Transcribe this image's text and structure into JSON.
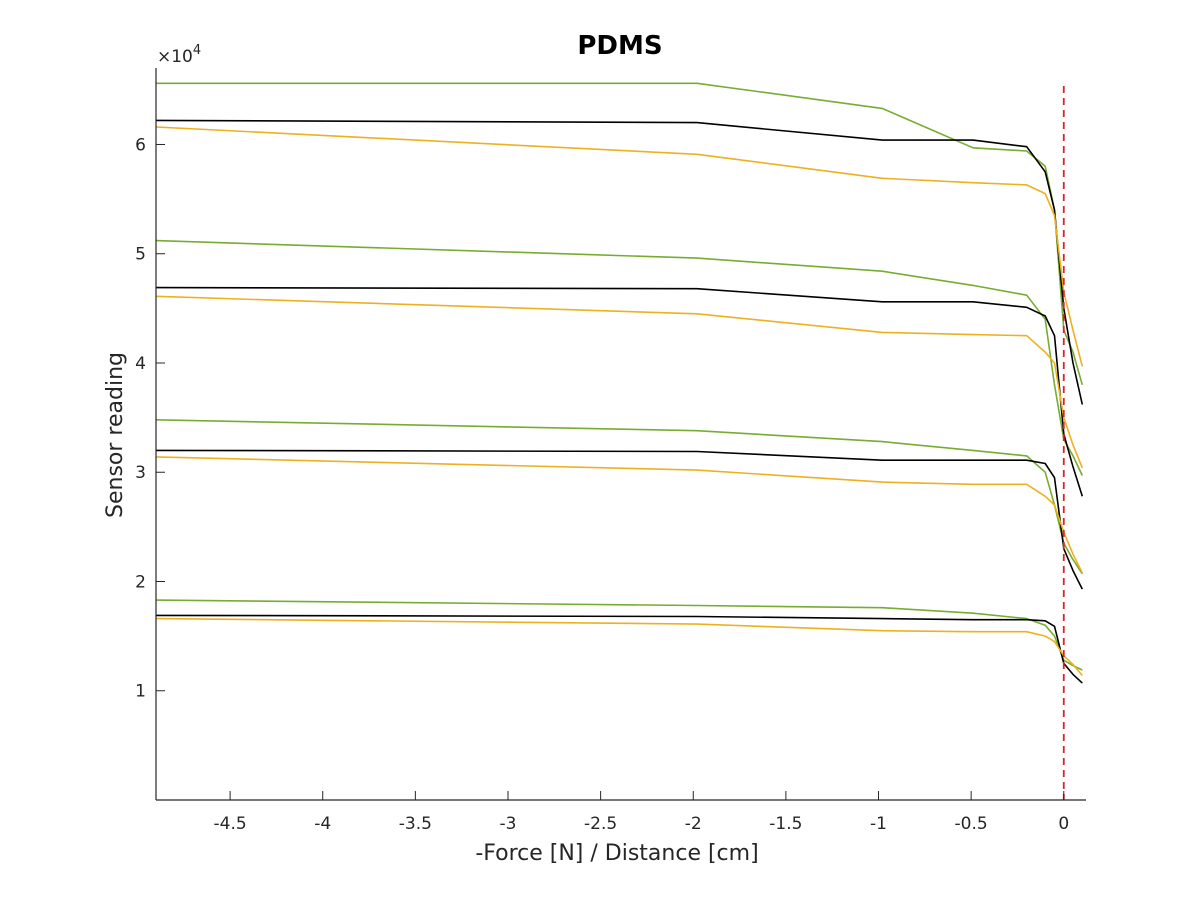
{
  "chart_data": {
    "type": "line",
    "title": "PDMS",
    "xlabel": "-Force [N] / Distance [cm]",
    "ylabel": "Sensor reading",
    "y_exponent_label": "×10",
    "y_exponent": "4",
    "xlim": [
      -4.9,
      0.12
    ],
    "ylim": [
      0,
      67000
    ],
    "xticks": [
      -4.5,
      -4,
      -3.5,
      -3,
      -2.5,
      -2,
      -1.5,
      -1,
      -0.5,
      0
    ],
    "xtick_labels": [
      "-4.5",
      "-4",
      "-3.5",
      "-3",
      "-2.5",
      "-2",
      "-1.5",
      "-1",
      "-0.5",
      "0"
    ],
    "yticks": [
      10000,
      20000,
      30000,
      40000,
      50000,
      60000
    ],
    "ytick_labels": [
      "1",
      "2",
      "3",
      "4",
      "5",
      "6"
    ],
    "grid": false,
    "legend": "none",
    "reference_line": {
      "x": 0,
      "color": "#d62728",
      "style": "dashed"
    },
    "colors": {
      "green": "#77ac30",
      "black": "#000000",
      "orange": "#edb120"
    },
    "series": [
      {
        "color": "green",
        "x": [
          -4.9,
          -1.98,
          -0.98,
          -0.49,
          -0.2,
          -0.1,
          -0.05,
          0,
          0.05,
          0.1
        ],
        "y": [
          65600,
          65600,
          63300,
          59700,
          59400,
          58000,
          54000,
          43000,
          41000,
          38000
        ]
      },
      {
        "color": "black",
        "x": [
          -4.9,
          -1.98,
          -0.98,
          -0.49,
          -0.2,
          -0.1,
          -0.05,
          0,
          0.05,
          0.1
        ],
        "y": [
          62200,
          62000,
          60400,
          60400,
          59800,
          57500,
          54000,
          45000,
          40000,
          36200
        ]
      },
      {
        "color": "orange",
        "x": [
          -4.9,
          -1.98,
          -0.98,
          -0.49,
          -0.2,
          -0.1,
          -0.05,
          0,
          0.05,
          0.1
        ],
        "y": [
          61600,
          59100,
          56900,
          56500,
          56300,
          55500,
          53500,
          46500,
          43000,
          39700
        ]
      },
      {
        "color": "green",
        "x": [
          -4.9,
          -1.98,
          -0.98,
          -0.49,
          -0.2,
          -0.1,
          -0.05,
          0,
          0.05,
          0.1
        ],
        "y": [
          51200,
          49600,
          48400,
          47100,
          46200,
          44000,
          38000,
          33000,
          31500,
          29700
        ]
      },
      {
        "color": "black",
        "x": [
          -4.9,
          -1.98,
          -0.98,
          -0.49,
          -0.2,
          -0.1,
          -0.05,
          0,
          0.05,
          0.1
        ],
        "y": [
          46900,
          46800,
          45600,
          45600,
          45100,
          44300,
          42500,
          33500,
          30500,
          27800
        ]
      },
      {
        "color": "orange",
        "x": [
          -4.9,
          -1.98,
          -0.98,
          -0.49,
          -0.2,
          -0.1,
          -0.05,
          0,
          0.05,
          0.1
        ],
        "y": [
          46100,
          44500,
          42800,
          42600,
          42500,
          41000,
          40000,
          35000,
          32500,
          30400
        ]
      },
      {
        "color": "green",
        "x": [
          -4.9,
          -1.98,
          -0.98,
          -0.49,
          -0.2,
          -0.1,
          -0.05,
          0,
          0.05,
          0.1
        ],
        "y": [
          34800,
          33800,
          32800,
          32000,
          31500,
          30000,
          27000,
          23500,
          22000,
          20700
        ]
      },
      {
        "color": "black",
        "x": [
          -4.9,
          -1.98,
          -0.98,
          -0.49,
          -0.2,
          -0.1,
          -0.05,
          0,
          0.05,
          0.1
        ],
        "y": [
          32000,
          31900,
          31100,
          31100,
          31100,
          30800,
          29500,
          23000,
          21000,
          19300
        ]
      },
      {
        "color": "orange",
        "x": [
          -4.9,
          -1.98,
          -0.98,
          -0.49,
          -0.2,
          -0.1,
          -0.05,
          0,
          0.05,
          0.1
        ],
        "y": [
          31400,
          30200,
          29100,
          28900,
          28900,
          27800,
          27000,
          24500,
          22500,
          20800
        ]
      },
      {
        "color": "green",
        "x": [
          -4.9,
          -1.98,
          -0.98,
          -0.49,
          -0.2,
          -0.1,
          -0.05,
          0,
          0.05,
          0.1
        ],
        "y": [
          18300,
          17800,
          17600,
          17100,
          16600,
          16000,
          15000,
          12800,
          12300,
          11900
        ]
      },
      {
        "color": "black",
        "x": [
          -4.9,
          -1.98,
          -0.98,
          -0.49,
          -0.2,
          -0.1,
          -0.05,
          0,
          0.05,
          0.1
        ],
        "y": [
          16900,
          16800,
          16600,
          16500,
          16500,
          16400,
          15900,
          12500,
          11500,
          10700
        ]
      },
      {
        "color": "orange",
        "x": [
          -4.9,
          -1.98,
          -0.98,
          -0.49,
          -0.2,
          -0.1,
          -0.05,
          0,
          0.05,
          0.1
        ],
        "y": [
          16600,
          16100,
          15500,
          15400,
          15400,
          15000,
          14500,
          13200,
          12400,
          11400
        ]
      }
    ]
  }
}
